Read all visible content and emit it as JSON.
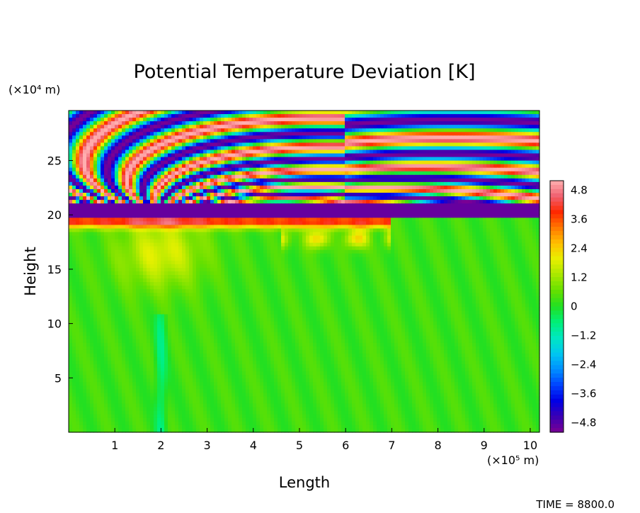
{
  "chart_data": {
    "type": "heatmap",
    "title": "Potential Temperature Deviation [K]",
    "xlabel": "Length",
    "ylabel": "Height",
    "x_unit": "(×10⁵ m)",
    "y_unit": "(×10⁴ m)",
    "xlim": [
      0,
      10.2
    ],
    "ylim": [
      0,
      29.6
    ],
    "x_ticks": [
      1,
      2,
      3,
      4,
      5,
      6,
      7,
      8,
      9,
      10
    ],
    "y_ticks": [
      5,
      10,
      15,
      20,
      25
    ],
    "colorbar": {
      "range": [
        -5.2,
        5.2
      ],
      "labels": [
        "4.8",
        "3.6",
        "2.4",
        "1.2",
        "0",
        "−1.2",
        "−2.4",
        "−3.6",
        "−4.8"
      ],
      "label_values": [
        4.8,
        3.6,
        2.4,
        1.2,
        0,
        -1.2,
        -2.4,
        -3.6,
        -4.8
      ],
      "colors": [
        "#7a0094",
        "#3a00b4",
        "#0000e6",
        "#0044ff",
        "#0090ff",
        "#00c8f0",
        "#00e8c0",
        "#00f078",
        "#22e022",
        "#66e000",
        "#a8e800",
        "#e8f000",
        "#ffc000",
        "#ff7800",
        "#ff2800",
        "#f06070",
        "#ffb0b0"
      ]
    },
    "field_description": {
      "background_value": 0.25,
      "tropopause_height": 20,
      "features": [
        {
          "kind": "warm_band_below_tropopause",
          "x_range": [
            0,
            7.0
          ],
          "height": 19.5,
          "value": 4.0
        },
        {
          "kind": "cold_layer_at_tropopause",
          "x_range": [
            0,
            10.2
          ],
          "height": 20.4,
          "value": -5.0
        },
        {
          "kind": "warm_convective_plume",
          "center_x": 2.0,
          "height_range": [
            11,
            20
          ],
          "value": 1.5
        },
        {
          "kind": "stratospheric_wave_fan",
          "origin_x": 2.0,
          "height_range": [
            20.5,
            29.6
          ],
          "amplitude": 5.0
        }
      ]
    },
    "time_label": "TIME =  8800.0"
  }
}
